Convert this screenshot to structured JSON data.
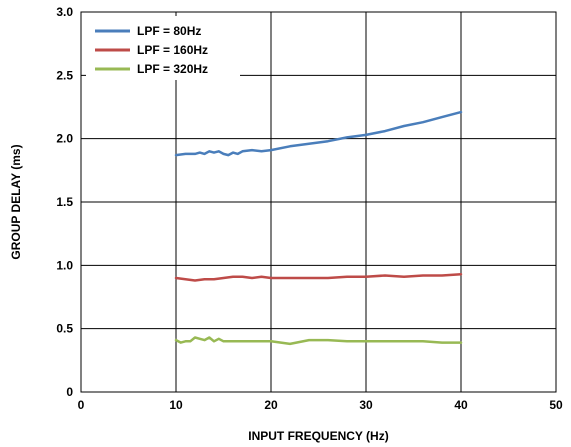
{
  "chart_data": {
    "type": "line",
    "title": "",
    "xlabel": "INPUT FREQUENCY (Hz)",
    "ylabel": "GROUP DELAY (ms)",
    "xlim": [
      0,
      50
    ],
    "ylim": [
      0,
      3.0
    ],
    "xticks": [
      "0",
      "10",
      "20",
      "30",
      "40",
      "50"
    ],
    "yticks": [
      "0",
      "0.5",
      "1.0",
      "1.5",
      "2.0",
      "2.5",
      "3.0"
    ],
    "grid": true,
    "legend_position": "top-left",
    "series": [
      {
        "name": "LPF = 80Hz",
        "color": "#4a7ebb",
        "x": [
          10,
          11,
          12,
          12.5,
          13,
          13.5,
          14,
          14.5,
          15,
          15.5,
          16,
          16.5,
          17,
          18,
          19,
          20,
          22,
          24,
          26,
          28,
          30,
          32,
          34,
          36,
          38,
          40
        ],
        "y": [
          1.87,
          1.88,
          1.88,
          1.89,
          1.88,
          1.9,
          1.89,
          1.9,
          1.88,
          1.87,
          1.89,
          1.88,
          1.9,
          1.91,
          1.9,
          1.91,
          1.94,
          1.96,
          1.98,
          2.01,
          2.03,
          2.06,
          2.1,
          2.13,
          2.17,
          2.21
        ]
      },
      {
        "name": "LPF = 160Hz",
        "color": "#be4b48",
        "x": [
          10,
          11,
          12,
          13,
          14,
          15,
          16,
          17,
          18,
          19,
          20,
          22,
          24,
          26,
          28,
          30,
          32,
          34,
          36,
          38,
          40
        ],
        "y": [
          0.9,
          0.89,
          0.88,
          0.89,
          0.89,
          0.9,
          0.91,
          0.91,
          0.9,
          0.91,
          0.9,
          0.9,
          0.9,
          0.9,
          0.91,
          0.91,
          0.92,
          0.91,
          0.92,
          0.92,
          0.93
        ]
      },
      {
        "name": "LPF = 320Hz",
        "color": "#98b954",
        "x": [
          10,
          10.5,
          11,
          11.5,
          12,
          12.5,
          13,
          13.5,
          14,
          14.5,
          15,
          16,
          18,
          20,
          22,
          24,
          26,
          28,
          30,
          32,
          34,
          36,
          38,
          40
        ],
        "y": [
          0.41,
          0.39,
          0.4,
          0.4,
          0.43,
          0.42,
          0.41,
          0.43,
          0.4,
          0.42,
          0.4,
          0.4,
          0.4,
          0.4,
          0.38,
          0.41,
          0.41,
          0.4,
          0.4,
          0.4,
          0.4,
          0.4,
          0.39,
          0.39
        ]
      }
    ]
  }
}
